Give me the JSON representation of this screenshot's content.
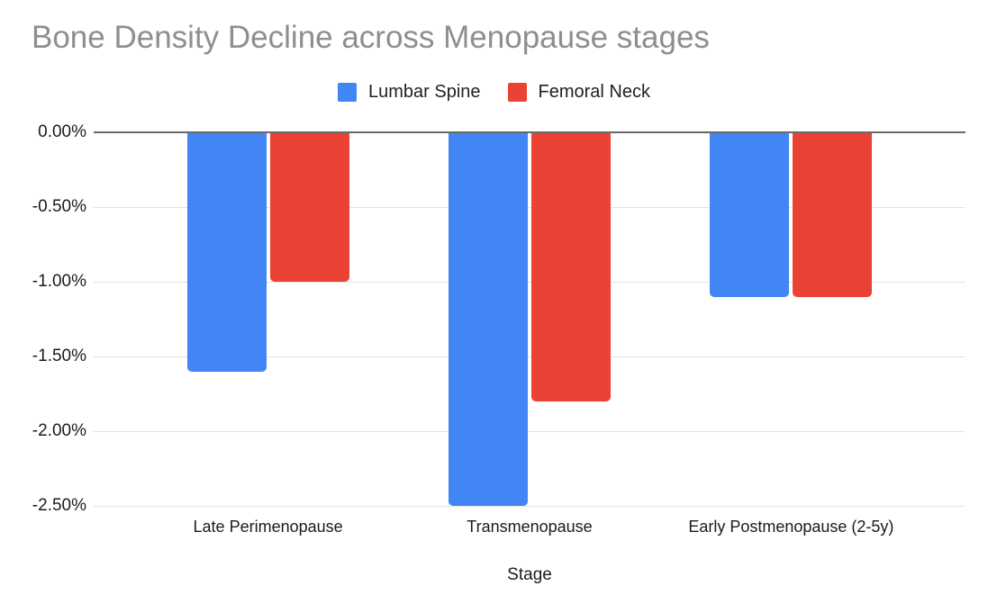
{
  "chart_data": {
    "type": "bar",
    "title": "Bone Density Decline across Menopause stages",
    "categories": [
      "Late Perimenopause",
      "Transmenopause",
      "Early Postmenopause (2-5y)"
    ],
    "series": [
      {
        "name": "Lumbar Spine",
        "color": "#4285F4",
        "values": [
          -1.6,
          -2.5,
          -1.1
        ]
      },
      {
        "name": "Femoral Neck",
        "color": "#EA4335",
        "values": [
          -1.0,
          -1.8,
          -1.1
        ]
      }
    ],
    "xlabel": "Stage",
    "y_ticks": [
      {
        "label": "0.00%",
        "value": 0
      },
      {
        "label": "-0.50%",
        "value": -0.5
      },
      {
        "label": "-1.00%",
        "value": -1.0
      },
      {
        "label": "-1.50%",
        "value": -1.5
      },
      {
        "label": "-2.00%",
        "value": -2.0
      },
      {
        "label": "-2.50%",
        "value": -2.5
      }
    ],
    "ylim": [
      -2.5,
      0
    ],
    "grid": true,
    "legend_position": "top"
  },
  "style": {
    "background": "#ffffff",
    "title_color": "#8e8e8e",
    "axis_label_color": "#1b1b1b",
    "gridline_color": "#e3e3e3",
    "baseline_color": "#696969",
    "series_colors": [
      "#4285F4",
      "#EA4335"
    ]
  }
}
